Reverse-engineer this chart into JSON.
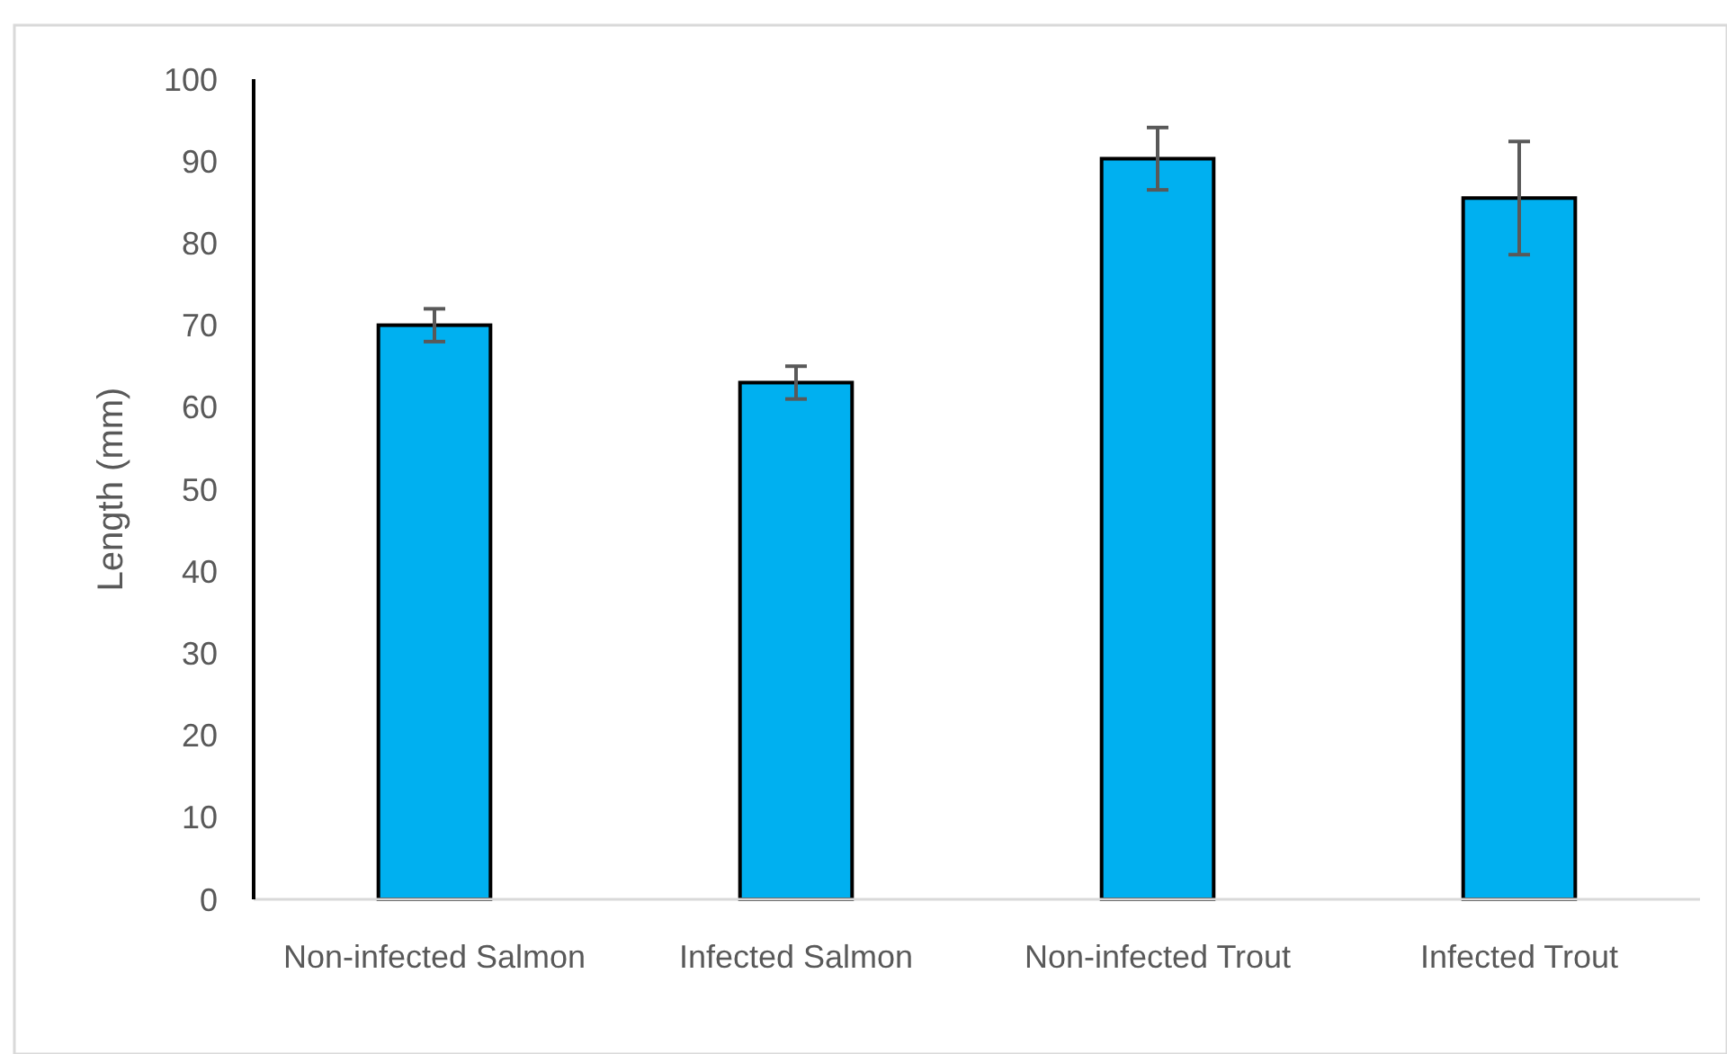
{
  "chart_data": {
    "type": "bar",
    "ylabel": "Length (mm)",
    "categories": [
      "Non-infected Salmon",
      "Infected Salmon",
      "Non-infected Trout",
      "Infected Trout"
    ],
    "values": [
      70,
      63,
      90.3,
      85.5
    ],
    "errors": [
      2,
      2,
      3.8,
      6.9
    ],
    "color": "#00b0f0",
    "ylim": [
      0,
      100
    ],
    "yticks": [
      0,
      10,
      20,
      30,
      40,
      50,
      60,
      70,
      80,
      90,
      100
    ],
    "grid": false
  }
}
